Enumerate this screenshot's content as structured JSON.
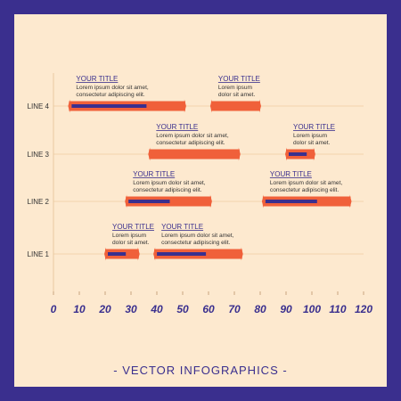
{
  "colors": {
    "frame": "#3a2f8e",
    "panel": "#fde9cf",
    "bar": "#f0603a",
    "inner": "#3a2f8e",
    "text": "#3a2f8e"
  },
  "chart_data": {
    "type": "bar",
    "orientation": "horizontal-range",
    "title": "",
    "xlabel": "",
    "ylabel": "",
    "categories": [
      "LINE 1",
      "LINE 2",
      "LINE 3",
      "LINE 4"
    ],
    "xlim": [
      0,
      120
    ],
    "xticks": [
      0,
      10,
      20,
      30,
      40,
      50,
      60,
      70,
      80,
      90,
      100,
      110,
      120
    ],
    "grid": true,
    "segments": [
      {
        "line": "LINE 1",
        "start": 20,
        "end": 33,
        "inner_start": 20,
        "inner_end": 28,
        "title": "YOUR TITLE",
        "text": [
          "Lorem ipsum",
          "dolor sit amet."
        ]
      },
      {
        "line": "LINE 1",
        "start": 39,
        "end": 73,
        "inner_start": 39,
        "inner_end": 59,
        "title": "YOUR TITLE",
        "text": [
          "Lorem ipsum dolor sit amet,",
          "consectetur adipiscing elit."
        ]
      },
      {
        "line": "LINE 2",
        "start": 28,
        "end": 61,
        "inner_start": 28,
        "inner_end": 45,
        "title": "YOUR TITLE",
        "text": [
          "Lorem ipsum dolor sit amet,",
          "consectetur adipiscing elit."
        ]
      },
      {
        "line": "LINE 2",
        "start": 81,
        "end": 115,
        "inner_start": 81,
        "inner_end": 102,
        "title": "YOUR TITLE",
        "text": [
          "Lorem ipsum dolor sit amet,",
          "consectetur adipiscing elit."
        ]
      },
      {
        "line": "LINE 3",
        "start": 37,
        "end": 72,
        "inner_start": null,
        "inner_end": null,
        "title": "YOUR TITLE",
        "text": [
          "Lorem ipsum dolor sit amet,",
          "consectetur adipiscing elit."
        ]
      },
      {
        "line": "LINE 3",
        "start": 90,
        "end": 101,
        "inner_start": 90,
        "inner_end": 98,
        "title": "YOUR TITLE",
        "text": [
          "Lorem ipsum",
          "dolor sit amet."
        ]
      },
      {
        "line": "LINE 4",
        "start": 6,
        "end": 51,
        "inner_start": 6,
        "inner_end": 36,
        "title": "YOUR TITLE",
        "text": [
          "Lorem ipsum dolor sit amet,",
          "consectetur adipiscing elit."
        ]
      },
      {
        "line": "LINE 4",
        "start": 61,
        "end": 80,
        "inner_start": null,
        "inner_end": null,
        "title": "YOUR TITLE",
        "text": [
          "Lorem ipsum",
          "dolor sit amet."
        ]
      }
    ]
  },
  "footer": "- VECTOR INFOGRAPHICS -"
}
